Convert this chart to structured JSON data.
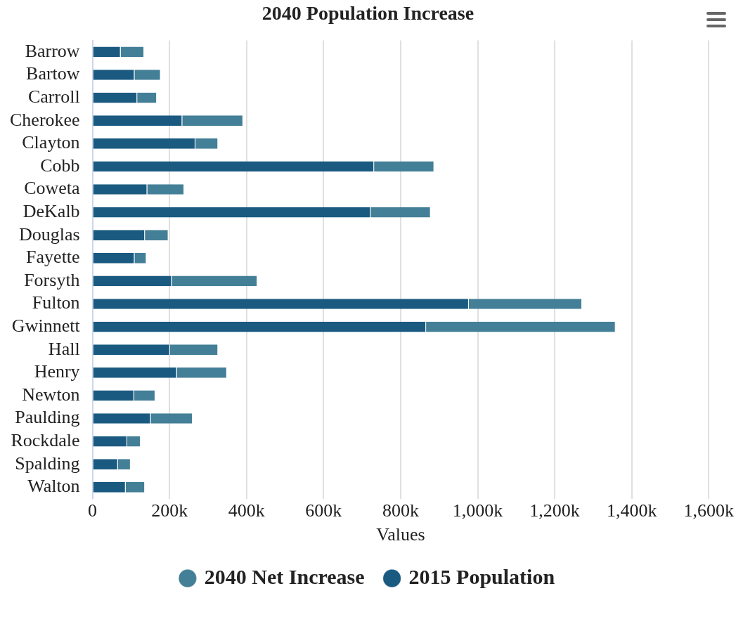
{
  "chart_data": {
    "type": "bar",
    "orientation": "horizontal",
    "stacked": true,
    "title": "2040 Population Increase",
    "xlabel": "Values",
    "categories": [
      "Barrow",
      "Bartow",
      "Carroll",
      "Cherokee",
      "Clayton",
      "Cobb",
      "Coweta",
      "DeKalb",
      "Douglas",
      "Fayette",
      "Forsyth",
      "Fulton",
      "Gwinnett",
      "Hall",
      "Henry",
      "Newton",
      "Paulding",
      "Rockdale",
      "Spalding",
      "Walton"
    ],
    "series": [
      {
        "name": "2015 Population",
        "color": "#1a5a80",
        "values": [
          73000,
          109000,
          116000,
          233000,
          267000,
          731000,
          142000,
          722000,
          136000,
          109000,
          206000,
          977000,
          866000,
          201000,
          219000,
          108000,
          151000,
          90000,
          66000,
          86000
        ]
      },
      {
        "name": "2040 Net Increase",
        "color": "#437f97",
        "values": [
          61000,
          68000,
          51000,
          158000,
          59000,
          156000,
          96000,
          156000,
          61000,
          31000,
          222000,
          294000,
          492000,
          125000,
          130000,
          55000,
          109000,
          35000,
          33000,
          50000
        ]
      }
    ],
    "xlim": [
      0,
      1600000
    ],
    "xticks": [
      0,
      {
        "value": 200000,
        "label": "200k"
      },
      {
        "value": 400000,
        "label": "400k"
      },
      {
        "value": 600000,
        "label": "600k"
      },
      {
        "value": 800000,
        "label": "800k"
      },
      {
        "value": 1000000,
        "label": "1,000k"
      },
      {
        "value": 1200000,
        "label": "1,200k"
      },
      {
        "value": 1400000,
        "label": "1,400k"
      },
      {
        "value": 1600000,
        "label": "1,600k"
      }
    ],
    "grid": "x",
    "legend": "bottom"
  }
}
